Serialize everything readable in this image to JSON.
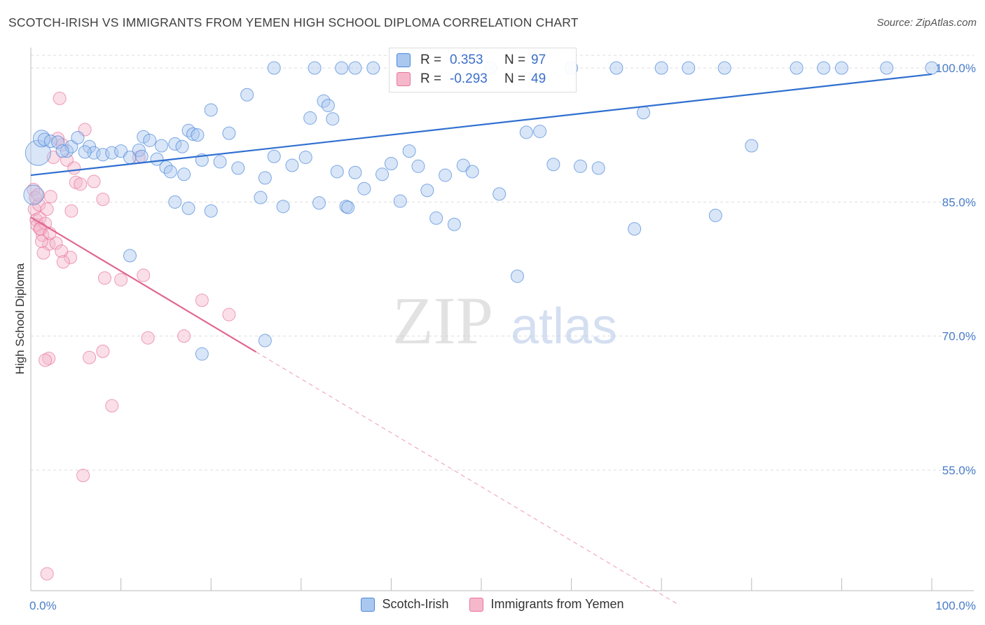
{
  "title": "SCOTCH-IRISH VS IMMIGRANTS FROM YEMEN HIGH SCHOOL DIPLOMA CORRELATION CHART",
  "source": "Source: ZipAtlas.com",
  "watermark": {
    "zip": "ZIP",
    "atlas": "atlas"
  },
  "colors": {
    "blue": "#4a86d8",
    "blue_fill": "#aac8ef",
    "pink": "#e8739c",
    "pink_fill": "#f5b8cb",
    "grid": "#dddddd",
    "axis_text": "#4a7cc9"
  },
  "stats_legend": {
    "rows": [
      {
        "r_label": "R =",
        "r_value": "0.353",
        "n_label": "N =",
        "n_value": "97"
      },
      {
        "r_label": "R =",
        "r_value": "-0.293",
        "n_label": "N =",
        "n_value": "49"
      }
    ]
  },
  "bottom_legend": [
    {
      "label": "Scotch-Irish"
    },
    {
      "label": "Immigrants from Yemen"
    }
  ],
  "chart_data": {
    "type": "scatter",
    "xlabel": "",
    "ylabel": "High School Diploma",
    "xlim": [
      0,
      100
    ],
    "ylim": [
      40,
      102
    ],
    "x_tick_labels": [
      "0.0%",
      "100.0%"
    ],
    "y_tick_labels": [
      {
        "value": 100,
        "label": "100.0%"
      },
      {
        "value": 85,
        "label": "85.0%"
      },
      {
        "value": 70,
        "label": "70.0%"
      },
      {
        "value": 55,
        "label": "55.0%"
      }
    ],
    "series": [
      {
        "name": "Scotch-Irish",
        "color": "#4a86d8",
        "trend": {
          "x0": 0,
          "y0": 88.0,
          "x1": 100,
          "y1": 99.3,
          "dashed_from": null
        },
        "points": [
          [
            0.8,
            90.5,
            18
          ],
          [
            1.2,
            92.1,
            12
          ],
          [
            1.5,
            92.0,
            9
          ],
          [
            2.2,
            91.8,
            9
          ],
          [
            3.0,
            91.7,
            9
          ],
          [
            4.0,
            90.7,
            9
          ],
          [
            4.5,
            91.2,
            9
          ],
          [
            5.2,
            92.2,
            9
          ],
          [
            6.5,
            91.2,
            9
          ],
          [
            7.0,
            90.5,
            9
          ],
          [
            8.0,
            90.3,
            9
          ],
          [
            9.0,
            90.5,
            9
          ],
          [
            10.0,
            90.7,
            9
          ],
          [
            11.0,
            90.0,
            9
          ],
          [
            12.0,
            90.8,
            9
          ],
          [
            12.5,
            92.3,
            9
          ],
          [
            13.2,
            91.9,
            9
          ],
          [
            6.0,
            90.6,
            9
          ],
          [
            3.5,
            90.7,
            9
          ],
          [
            14.0,
            89.8,
            9
          ],
          [
            15.0,
            88.9,
            9
          ],
          [
            12.3,
            90.1,
            9
          ],
          [
            14.5,
            91.3,
            9
          ],
          [
            16.0,
            91.5,
            9
          ],
          [
            17.5,
            93.0,
            9
          ],
          [
            16.8,
            91.2,
            9
          ],
          [
            18.0,
            92.6,
            9
          ],
          [
            18.5,
            92.5,
            9
          ],
          [
            15.5,
            88.4,
            9
          ],
          [
            16.0,
            85.0,
            9
          ],
          [
            17.0,
            88.1,
            9
          ],
          [
            19.0,
            89.7,
            9
          ],
          [
            20.0,
            95.3,
            9
          ],
          [
            21.0,
            89.5,
            9
          ],
          [
            22.0,
            92.7,
            9
          ],
          [
            23.0,
            88.8,
            9
          ],
          [
            24.0,
            97.0,
            9
          ],
          [
            25.5,
            85.5,
            9
          ],
          [
            26.0,
            87.7,
            9
          ],
          [
            27.0,
            90.1,
            9
          ],
          [
            28.0,
            84.5,
            9
          ],
          [
            29.0,
            89.1,
            9
          ],
          [
            30.5,
            90.0,
            9
          ],
          [
            31.0,
            94.4,
            9
          ],
          [
            32.0,
            84.9,
            9
          ],
          [
            32.5,
            96.3,
            9
          ],
          [
            33.0,
            95.8,
            9
          ],
          [
            33.5,
            94.3,
            9
          ],
          [
            34.0,
            88.4,
            9
          ],
          [
            35.0,
            84.5,
            9
          ],
          [
            35.2,
            84.4,
            9
          ],
          [
            36.0,
            88.3,
            9
          ],
          [
            37.0,
            86.5,
            9
          ],
          [
            38.0,
            100.0,
            9
          ],
          [
            39.0,
            88.1,
            9
          ],
          [
            40.0,
            89.3,
            9
          ],
          [
            41.0,
            85.1,
            9
          ],
          [
            42.0,
            90.7,
            9
          ],
          [
            43.0,
            89.0,
            9
          ],
          [
            44.0,
            86.3,
            9
          ],
          [
            45.0,
            83.2,
            9
          ],
          [
            46.0,
            88.0,
            9
          ],
          [
            47.0,
            82.5,
            9
          ],
          [
            48.0,
            89.1,
            9
          ],
          [
            49.0,
            88.4,
            9
          ],
          [
            51.0,
            100.0,
            9
          ],
          [
            52.0,
            85.9,
            9
          ],
          [
            54.0,
            76.7,
            9
          ],
          [
            55.0,
            92.8,
            9
          ],
          [
            56.5,
            92.9,
            9
          ],
          [
            58.0,
            89.2,
            9
          ],
          [
            60.0,
            100.0,
            9
          ],
          [
            61.0,
            89.0,
            9
          ],
          [
            63.0,
            88.8,
            9
          ],
          [
            65.0,
            100.0,
            9
          ],
          [
            67.0,
            82.0,
            9
          ],
          [
            68.0,
            95.0,
            9
          ],
          [
            70.0,
            100.0,
            9
          ],
          [
            73.0,
            100.0,
            9
          ],
          [
            76.0,
            83.5,
            9
          ],
          [
            77.0,
            100.0,
            9
          ],
          [
            80.0,
            91.3,
            9
          ],
          [
            85.0,
            100.0,
            9
          ],
          [
            88.0,
            100.0,
            9
          ],
          [
            90.0,
            100.0,
            9
          ],
          [
            95.0,
            100.0,
            9
          ],
          [
            100.0,
            100.0,
            9
          ],
          [
            31.5,
            100.0,
            9
          ],
          [
            27.0,
            100.0,
            9
          ],
          [
            34.5,
            100.0,
            9
          ],
          [
            36.0,
            100.0,
            9
          ],
          [
            26.0,
            69.5,
            9
          ],
          [
            19.0,
            68.0,
            9
          ],
          [
            11.0,
            79.0,
            9
          ],
          [
            0.3,
            85.8,
            14
          ],
          [
            17.5,
            84.3,
            9
          ],
          [
            20.0,
            84.0,
            9
          ]
        ]
      },
      {
        "name": "Immigrants from Yemen",
        "color": "#e8739c",
        "trend": {
          "x0": 0,
          "y0": 83.3,
          "x1": 100,
          "y1": 23.0,
          "solid_until": 25.0
        },
        "points": [
          [
            0.3,
            86.4,
            9
          ],
          [
            0.5,
            85.5,
            9
          ],
          [
            0.4,
            84.2,
            9
          ],
          [
            0.6,
            83.0,
            9
          ],
          [
            0.7,
            82.4,
            9
          ],
          [
            0.9,
            84.7,
            9
          ],
          [
            1.0,
            83.2,
            9
          ],
          [
            1.1,
            82.0,
            9
          ],
          [
            1.3,
            81.3,
            9
          ],
          [
            1.6,
            82.6,
            9
          ],
          [
            1.8,
            84.2,
            9
          ],
          [
            2.0,
            80.3,
            9
          ],
          [
            2.2,
            85.6,
            9
          ],
          [
            2.5,
            90.0,
            9
          ],
          [
            3.0,
            92.1,
            9
          ],
          [
            3.2,
            96.6,
            9
          ],
          [
            3.5,
            91.4,
            9
          ],
          [
            4.0,
            89.7,
            9
          ],
          [
            4.4,
            78.8,
            9
          ],
          [
            4.8,
            88.8,
            9
          ],
          [
            4.5,
            84.0,
            9
          ],
          [
            5.0,
            87.2,
            9
          ],
          [
            5.5,
            87.0,
            9
          ],
          [
            6.0,
            93.1,
            9
          ],
          [
            7.0,
            87.3,
            9
          ],
          [
            8.0,
            85.3,
            9
          ],
          [
            8.2,
            76.5,
            9
          ],
          [
            8.0,
            68.3,
            9
          ],
          [
            10.0,
            76.3,
            9
          ],
          [
            12.5,
            76.8,
            9
          ],
          [
            13.0,
            69.8,
            9
          ],
          [
            17.0,
            70.0,
            9
          ],
          [
            19.0,
            74.0,
            9
          ],
          [
            22.0,
            72.4,
            9
          ],
          [
            6.5,
            67.6,
            9
          ],
          [
            2.0,
            67.5,
            9
          ],
          [
            1.6,
            67.3,
            9
          ],
          [
            1.0,
            82.0,
            9
          ],
          [
            1.2,
            80.6,
            9
          ],
          [
            1.4,
            79.3,
            9
          ],
          [
            2.8,
            80.4,
            9
          ],
          [
            3.4,
            79.5,
            9
          ],
          [
            9.0,
            62.2,
            9
          ],
          [
            5.8,
            54.4,
            9
          ],
          [
            1.8,
            43.4,
            9
          ],
          [
            12.0,
            90.0,
            9
          ],
          [
            0.8,
            85.8,
            9
          ],
          [
            2.1,
            81.5,
            9
          ],
          [
            3.6,
            78.3,
            9
          ]
        ]
      }
    ]
  }
}
